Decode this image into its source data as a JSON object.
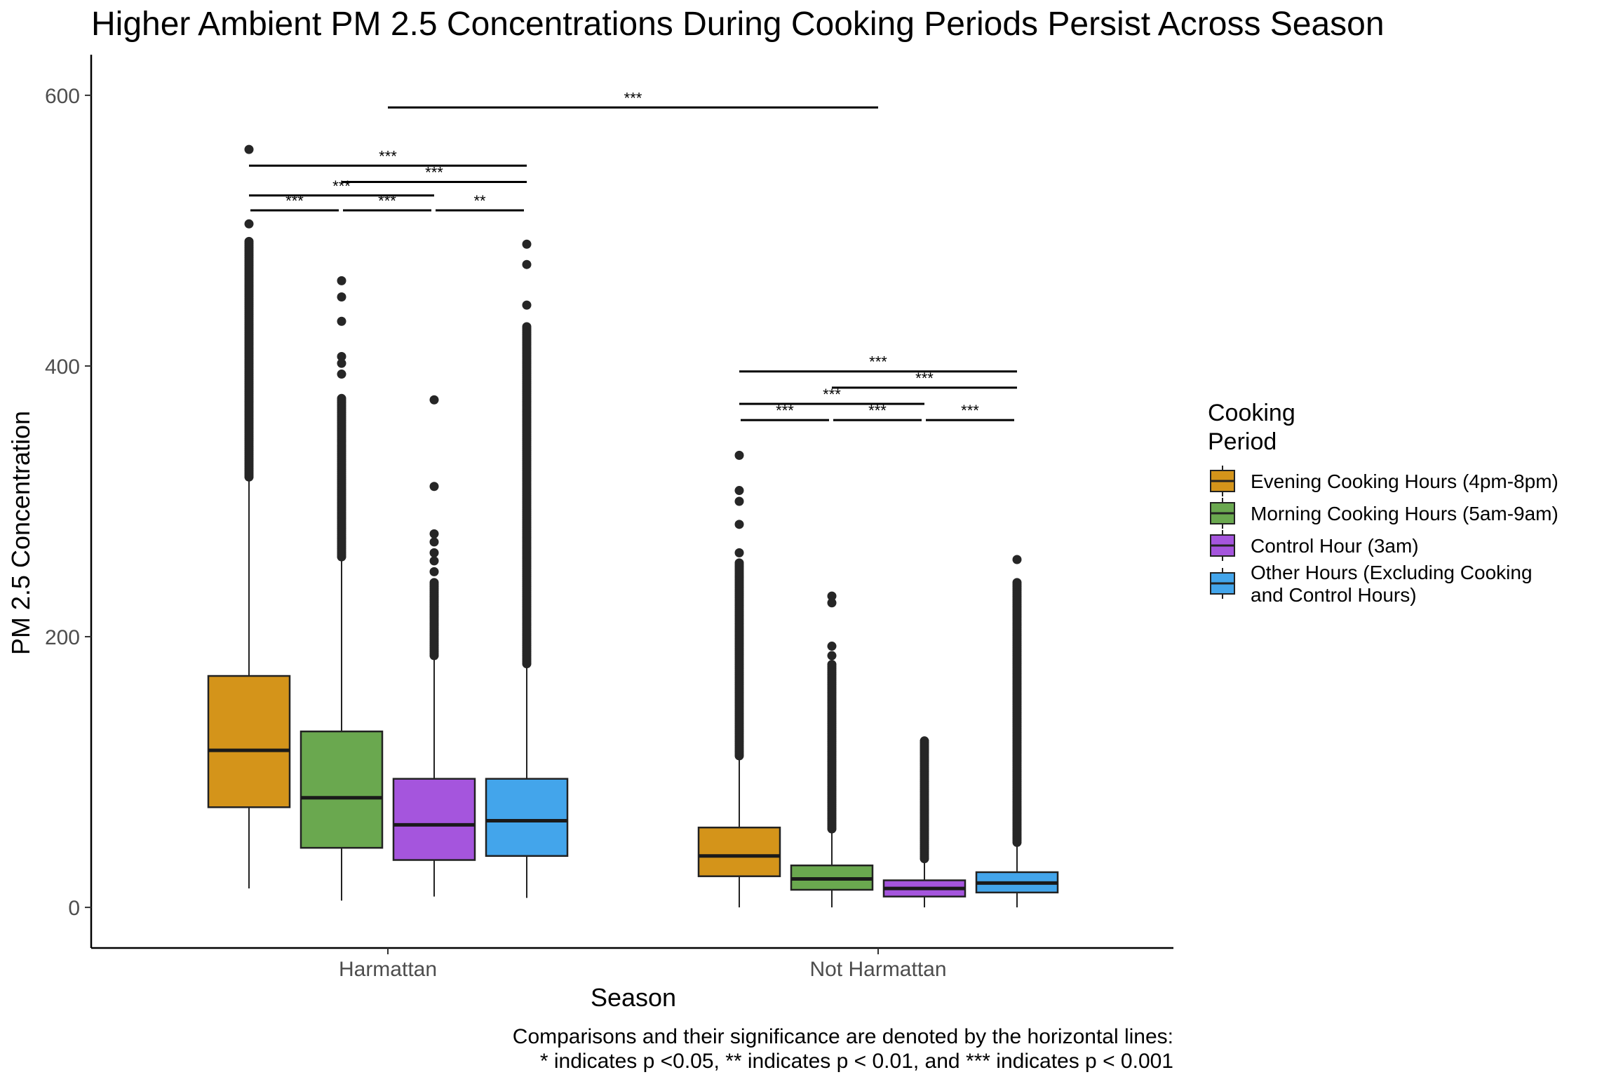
{
  "chart_data": {
    "type": "boxplot",
    "title": "Higher Ambient PM 2.5 Concentrations During Cooking Periods Persist Across Season",
    "xlabel": "Season",
    "ylabel": "PM 2.5 Concentration",
    "ylim": [
      -30,
      630
    ],
    "y_ticks": [
      0,
      200,
      400,
      600
    ],
    "categories": [
      "Harmattan",
      "Not Harmattan"
    ],
    "legend": {
      "title_lines": [
        "Cooking",
        "Period"
      ],
      "placement": "right"
    },
    "series": [
      {
        "name": "Evening Cooking Hours (4pm-8pm)",
        "color": "#D4941A",
        "boxes": [
          {
            "min": 14,
            "q1": 74,
            "median": 116,
            "q3": 171,
            "max": 318,
            "outliers_range": [
              318,
              492
            ],
            "outliers_sparse": [
              505,
              560
            ]
          },
          {
            "min": 0,
            "q1": 23,
            "median": 38,
            "q3": 59,
            "max": 112,
            "outliers_range": [
              112,
              255
            ],
            "outliers_sparse": [
              262,
              283,
              300,
              308,
              334
            ]
          }
        ]
      },
      {
        "name": "Morning Cooking Hours (5am-9am)",
        "color": "#6AA84F",
        "boxes": [
          {
            "min": 5,
            "q1": 44,
            "median": 81,
            "q3": 130,
            "max": 259,
            "outliers_range": [
              259,
              376
            ],
            "outliers_sparse": [
              394,
              402,
              407,
              433,
              451,
              463
            ]
          },
          {
            "min": 0,
            "q1": 13,
            "median": 21,
            "q3": 31,
            "max": 58,
            "outliers_range": [
              58,
              180
            ],
            "outliers_sparse": [
              186,
              193,
              225,
              230
            ]
          }
        ]
      },
      {
        "name": "Control Hour (3am)",
        "color": "#A555DD",
        "boxes": [
          {
            "min": 8,
            "q1": 35,
            "median": 61,
            "q3": 95,
            "max": 186,
            "outliers_range": [
              186,
              240
            ],
            "outliers_sparse": [
              248,
              256,
              262,
              270,
              276,
              311,
              375
            ]
          },
          {
            "min": 0,
            "q1": 8,
            "median": 14,
            "q3": 20,
            "max": 36,
            "outliers_range": [
              36,
              123
            ],
            "outliers_sparse": []
          }
        ]
      },
      {
        "name": "Other Hours (Excluding Cooking and Control Hours)",
        "legend_lines": [
          "Other Hours (Excluding Cooking",
          "and Control Hours)"
        ],
        "color": "#43A5EB",
        "boxes": [
          {
            "min": 7,
            "q1": 38,
            "median": 64,
            "q3": 95,
            "max": 180,
            "outliers_range": [
              180,
              430
            ],
            "outliers_sparse": [
              445,
              475,
              490
            ]
          },
          {
            "min": 0,
            "q1": 11,
            "median": 18,
            "q3": 26,
            "max": 48,
            "outliers_range": [
              48,
              240
            ],
            "outliers_sparse": [
              257
            ]
          }
        ]
      }
    ],
    "significance_brackets": [
      {
        "category": 0,
        "from": 0,
        "to": 1,
        "y": 515,
        "label": "***"
      },
      {
        "category": 0,
        "from": 1,
        "to": 2,
        "y": 515,
        "label": "***"
      },
      {
        "category": 0,
        "from": 2,
        "to": 3,
        "y": 515,
        "label": "**"
      },
      {
        "category": 0,
        "from": 0,
        "to": 2,
        "y": 526,
        "label": "***"
      },
      {
        "category": 0,
        "from": 1,
        "to": 3,
        "y": 536,
        "label": "***"
      },
      {
        "category": 0,
        "from": 0,
        "to": 3,
        "y": 548,
        "label": "***"
      },
      {
        "category": 1,
        "from": 0,
        "to": 1,
        "y": 360,
        "label": "***"
      },
      {
        "category": 1,
        "from": 1,
        "to": 2,
        "y": 360,
        "label": "***"
      },
      {
        "category": 1,
        "from": 2,
        "to": 3,
        "y": 360,
        "label": "***"
      },
      {
        "category": 1,
        "from": 0,
        "to": 2,
        "y": 372,
        "label": "***"
      },
      {
        "category": 1,
        "from": 1,
        "to": 3,
        "y": 384,
        "label": "***"
      },
      {
        "category": 1,
        "from": 0,
        "to": 3,
        "y": 396,
        "label": "***"
      },
      {
        "between_categories": true,
        "y": 591,
        "label": "***"
      }
    ],
    "caption_lines": [
      "Comparisons and their significance are denoted by the horizontal lines:",
      "* indicates p <0.05, ** indicates p < 0.01, and *** indicates p < 0.001"
    ]
  }
}
